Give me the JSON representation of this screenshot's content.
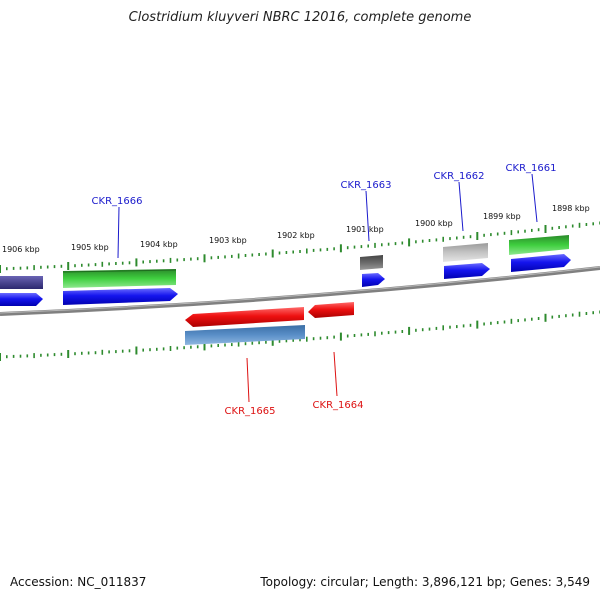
{
  "header": {
    "title": "Clostridium kluyveri NBRC 12016, complete genome"
  },
  "footer": {
    "accession": "Accession: NC_011837",
    "topology": "Topology: circular; Length: 3,896,121 bp; Genes: 3,549"
  },
  "ticks": {
    "labels": [
      "1906 kbp",
      "1905 kbp",
      "1904 kbp",
      "1903 kbp",
      "1902 kbp",
      "1901 kbp",
      "1900 kbp",
      "1899 kbp",
      "1898 kbp"
    ]
  },
  "genes": {
    "forward": [
      "CKR_1666",
      "CKR_1663",
      "CKR_1662",
      "CKR_1661"
    ],
    "reverse": [
      "CKR_1665",
      "CKR_1664"
    ]
  },
  "colors": {
    "forward_label": "#1a1acc",
    "reverse_label": "#dd1111",
    "tick": "#2e8b2e",
    "backbone": "#808080"
  }
}
